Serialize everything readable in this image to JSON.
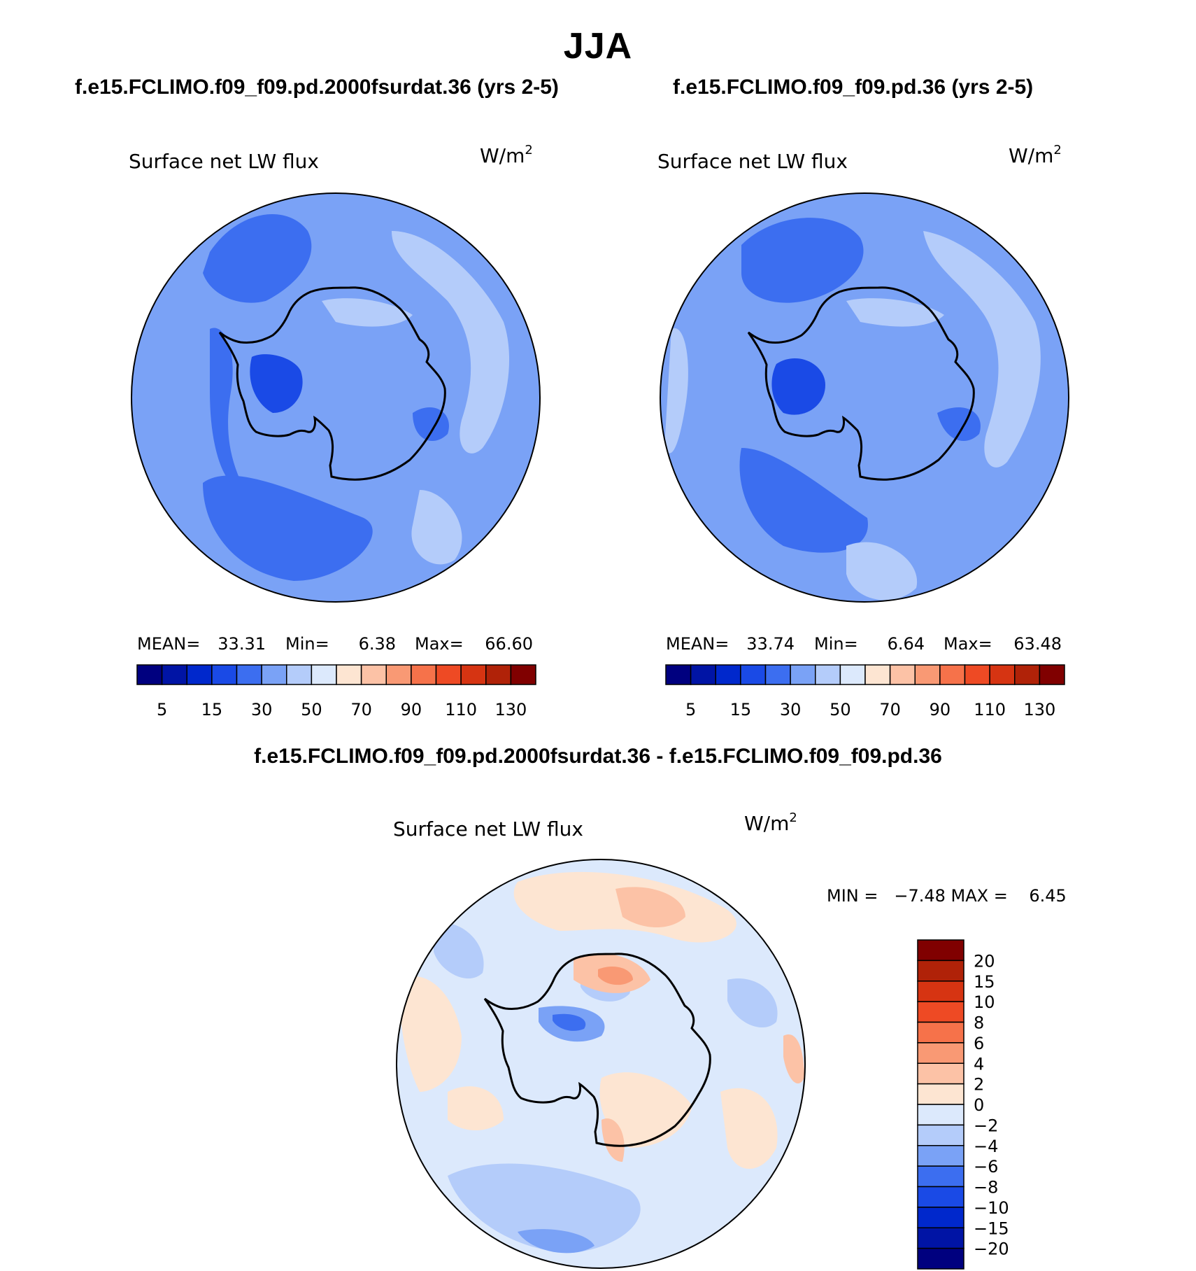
{
  "page": {
    "season_title": "JJA",
    "case_left_title": "f.e15.FCLIMO.f09_f09.pd.2000fsurdat.36 (yrs 2-5)",
    "case_right_title": "f.e15.FCLIMO.f09_f09.pd.36 (yrs 2-5)",
    "difference_title": "f.e15.FCLIMO.f09_f09.pd.2000fsurdat.36 - f.e15.FCLIMO.f09_f09.pd.36"
  },
  "panels": {
    "left": {
      "variable": "Surface net LW flux",
      "units": "W/m",
      "units_exp": "2",
      "stats": {
        "mean_label": "MEAN=",
        "mean": "33.31",
        "min_label": "Min=",
        "min": "6.38",
        "max_label": "Max=",
        "max": "66.60"
      }
    },
    "right": {
      "variable": "Surface net LW flux",
      "units": "W/m",
      "units_exp": "2",
      "stats": {
        "mean_label": "MEAN=",
        "mean": "33.74",
        "min_label": "Min=",
        "min": "6.64",
        "max_label": "Max=",
        "max": "63.48"
      }
    },
    "difference": {
      "variable": "Surface net LW flux",
      "units": "W/m",
      "units_exp": "2",
      "minmax_text": "MIN =   −7.48 MAX =    6.45"
    }
  },
  "colorbar_abs": {
    "colors": [
      "#00007f",
      "#0014a5",
      "#0028cc",
      "#1a4ae6",
      "#3c6ef0",
      "#7aa2f6",
      "#b4ccfa",
      "#dce9fc",
      "#fde5d2",
      "#fcc2a6",
      "#f99974",
      "#f6724a",
      "#ee4a24",
      "#d63412",
      "#b02208",
      "#800000"
    ],
    "labels": [
      "5",
      "15",
      "30",
      "50",
      "70",
      "90",
      "110",
      "130"
    ]
  },
  "colorbar_diff": {
    "colors": [
      "#800000",
      "#b02208",
      "#d63412",
      "#ee4a24",
      "#f6724a",
      "#f99974",
      "#fcc2a6",
      "#fde5d2",
      "#dce9fc",
      "#b4ccfa",
      "#7aa2f6",
      "#3c6ef0",
      "#1a4ae6",
      "#0028cc",
      "#0014a5",
      "#00007f"
    ],
    "labels": [
      "20",
      "15",
      "10",
      "8",
      "6",
      "4",
      "2",
      "0",
      "−2",
      "−4",
      "−6",
      "−8",
      "−10",
      "−15",
      "−20"
    ]
  },
  "map_colors": {
    "abs_base": "#7aa2f6",
    "abs_dark": "#3c6ef0",
    "abs_darker": "#1a4ae6",
    "abs_light": "#b4ccfa",
    "abs_lighter": "#dce9fc",
    "diff_base": "#dce9fc",
    "diff_pos": "#fde5d2",
    "diff_pos2": "#fcc2a6",
    "diff_pos3": "#f99974",
    "diff_neg": "#b4ccfa",
    "diff_neg2": "#7aa2f6",
    "diff_neg3": "#3c6ef0"
  }
}
